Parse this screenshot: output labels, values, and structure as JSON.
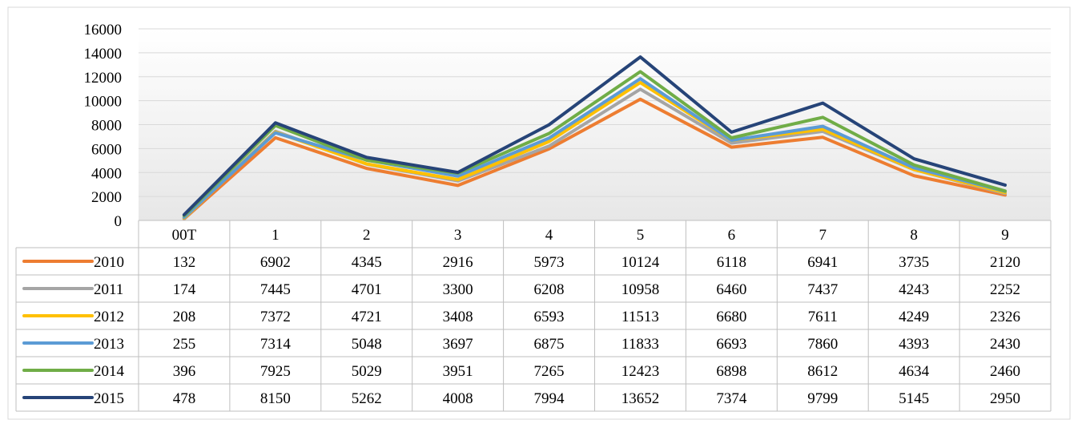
{
  "chart_data": {
    "type": "line",
    "title": "",
    "xlabel": "",
    "ylabel": "",
    "categories": [
      "00T",
      "1",
      "2",
      "3",
      "4",
      "5",
      "6",
      "7",
      "8",
      "9"
    ],
    "ylim": [
      0,
      16000
    ],
    "yticks": [
      "0",
      "2000",
      "4000",
      "6000",
      "8000",
      "10000",
      "12000",
      "14000",
      "16000"
    ],
    "grid": true,
    "legend": "data-table",
    "series": [
      {
        "name": "2010",
        "color": "#ED7D31",
        "values": [
          132,
          6902,
          4345,
          2916,
          5973,
          10124,
          6118,
          6941,
          3735,
          2120
        ]
      },
      {
        "name": "2011",
        "color": "#A5A5A5",
        "values": [
          174,
          7445,
          4701,
          3300,
          6208,
          10958,
          6460,
          7437,
          4243,
          2252
        ]
      },
      {
        "name": "2012",
        "color": "#FFC000",
        "values": [
          208,
          7372,
          4721,
          3408,
          6593,
          11513,
          6680,
          7611,
          4249,
          2326
        ]
      },
      {
        "name": "2013",
        "color": "#5B9BD5",
        "values": [
          255,
          7314,
          5048,
          3697,
          6875,
          11833,
          6693,
          7860,
          4393,
          2430
        ]
      },
      {
        "name": "2014",
        "color": "#70AD47",
        "values": [
          396,
          7925,
          5029,
          3951,
          7265,
          12423,
          6898,
          8612,
          4634,
          2460
        ]
      },
      {
        "name": "2015",
        "color": "#264478",
        "values": [
          478,
          8150,
          5262,
          4008,
          7994,
          13652,
          7374,
          9799,
          5145,
          2950
        ]
      }
    ]
  }
}
